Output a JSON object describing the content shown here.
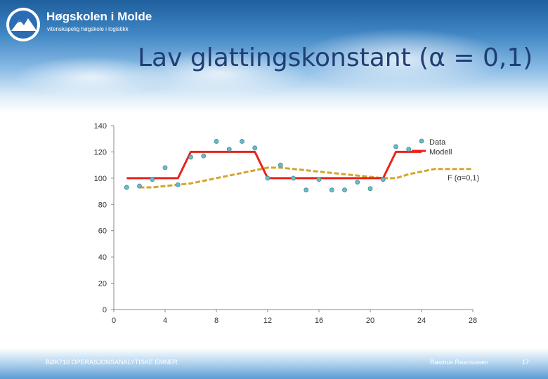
{
  "header": {
    "logo_name": "Høgskolen i Molde",
    "logo_tagline": "vitenskapelig høgskole i logistikk",
    "slide_title": "Lav glattingskonstant (α = 0,1)"
  },
  "footer": {
    "course": "BØK710 OPERASJONSANALYTISKE EMNER",
    "author": "Rasmus Rasmussen",
    "page": "17"
  },
  "colors": {
    "data": "#6fb9c6",
    "data_stroke": "#3f8c99",
    "model": "#e8231b",
    "forecast": "#d4a52b"
  },
  "chart_data": {
    "type": "line",
    "xlim": [
      0,
      28
    ],
    "ylim": [
      0,
      140
    ],
    "xticks": [
      0,
      4,
      8,
      12,
      16,
      20,
      24,
      28
    ],
    "yticks": [
      0,
      20,
      40,
      60,
      80,
      100,
      120,
      140
    ],
    "grid": false,
    "legend_position": "right",
    "series": [
      {
        "name": "Data",
        "kind": "scatter",
        "x": [
          1,
          2,
          3,
          4,
          5,
          6,
          7,
          8,
          9,
          10,
          11,
          12,
          13,
          14,
          15,
          16,
          17,
          18,
          19,
          20,
          21,
          22,
          23
        ],
        "y": [
          93,
          94,
          99,
          108,
          95,
          116,
          117,
          128,
          122,
          128,
          123,
          100,
          110,
          100,
          91,
          99,
          91,
          91,
          97,
          92,
          99,
          124,
          122
        ]
      },
      {
        "name": "Modell",
        "kind": "line",
        "x": [
          1,
          5,
          6,
          11,
          12,
          20,
          21,
          22,
          24
        ],
        "y": [
          100,
          100,
          120,
          120,
          100,
          100,
          100,
          120,
          120
        ]
      },
      {
        "name": "F (α=0,1)",
        "kind": "dashed-line",
        "x": [
          2,
          3,
          4,
          5,
          6,
          7,
          8,
          9,
          10,
          11,
          12,
          13,
          14,
          15,
          16,
          17,
          18,
          19,
          20,
          21,
          22,
          23,
          24,
          25,
          26,
          27,
          28
        ],
        "y": [
          93,
          93,
          94,
          95,
          96,
          98,
          100,
          102,
          104,
          106,
          108,
          108,
          107,
          106,
          105,
          104,
          103,
          102,
          101,
          100,
          100,
          103,
          105,
          107,
          107,
          107,
          107
        ]
      }
    ]
  }
}
